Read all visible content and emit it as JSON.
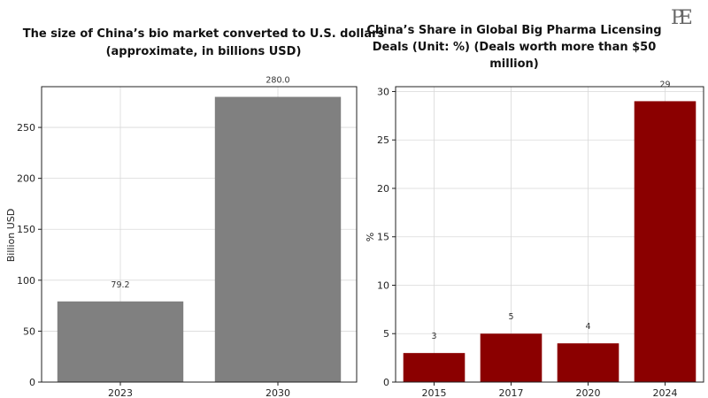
{
  "logo": {
    "text": "PE"
  },
  "chart_data": [
    {
      "type": "bar",
      "title_lines": [
        "The size of China’s bio market converted to U.S. dollars",
        "(approximate, in billions USD)"
      ],
      "categories": [
        "2023",
        "2030"
      ],
      "values": [
        79.2,
        280.0
      ],
      "value_labels": [
        "79.2",
        "280.0"
      ],
      "xlabel": "",
      "ylabel": "Billion USD",
      "ylim": [
        0,
        290
      ],
      "yticks": [
        0,
        50,
        100,
        150,
        200,
        250
      ],
      "grid": true,
      "color": "#808080"
    },
    {
      "type": "bar",
      "title_lines": [
        "China’s Share in Global Big Pharma Licensing",
        "Deals (Unit: %) (Deals worth more than $50",
        "million)"
      ],
      "categories": [
        "2015",
        "2017",
        "2020",
        "2024"
      ],
      "values": [
        3,
        5,
        4,
        29
      ],
      "value_labels": [
        "3",
        "5",
        "4",
        "29"
      ],
      "xlabel": "",
      "ylabel": "%",
      "ylim": [
        0,
        30.5
      ],
      "yticks": [
        0,
        5,
        10,
        15,
        20,
        25,
        30
      ],
      "grid": true,
      "color": "#8b0000"
    }
  ]
}
